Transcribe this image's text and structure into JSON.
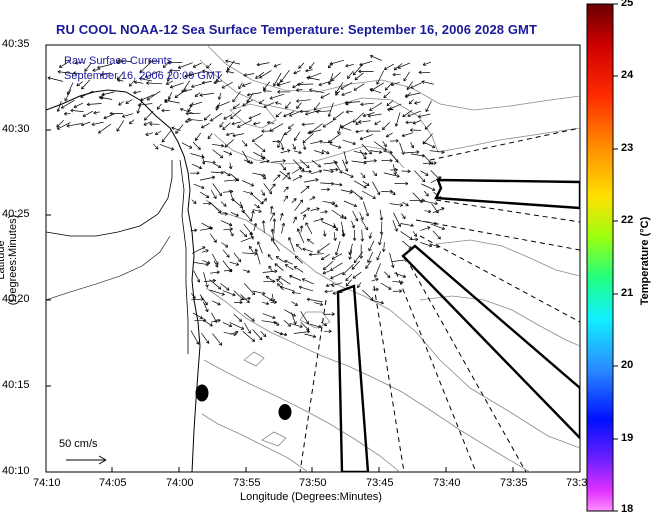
{
  "title": "RU COOL  NOAA-12  Sea Surface Temperature:  September 16, 2006 2028 GMT",
  "subtitle_1": "Raw Surface Currents",
  "subtitle_2": "September 16, 2006 20:00 GMT",
  "scale_label": "50 cm/s",
  "xlabel": "Longitude (Degrees:Minutes)",
  "ylabel": "Latitude (Degrees:Minutes)",
  "x_ticks": [
    "74:10",
    "74:05",
    "74:00",
    "73:55",
    "73:50",
    "73:45",
    "73:40",
    "73:35",
    "73:3"
  ],
  "y_ticks": [
    "40:35",
    "40:30",
    "40:25",
    "40:20",
    "40:15",
    "40:10"
  ],
  "colorbar": {
    "label": "Temperature (°C)",
    "ticks": [
      "25",
      "24",
      "23",
      "22",
      "21",
      "20",
      "19",
      "18"
    ],
    "range": [
      18,
      25
    ],
    "colors": [
      "#ff2cff",
      "#6d29ff",
      "#0a2bff",
      "#2f83ff",
      "#18e5ff",
      "#23ffb3",
      "#5aff2f",
      "#e6ff14",
      "#ffbf12",
      "#ff5a10",
      "#ff0c0c",
      "#c40808",
      "#7a0404"
    ]
  },
  "colors": {
    "title": "#1a1a9a",
    "contour": "#8a8a8a",
    "vector": "#000000"
  }
}
